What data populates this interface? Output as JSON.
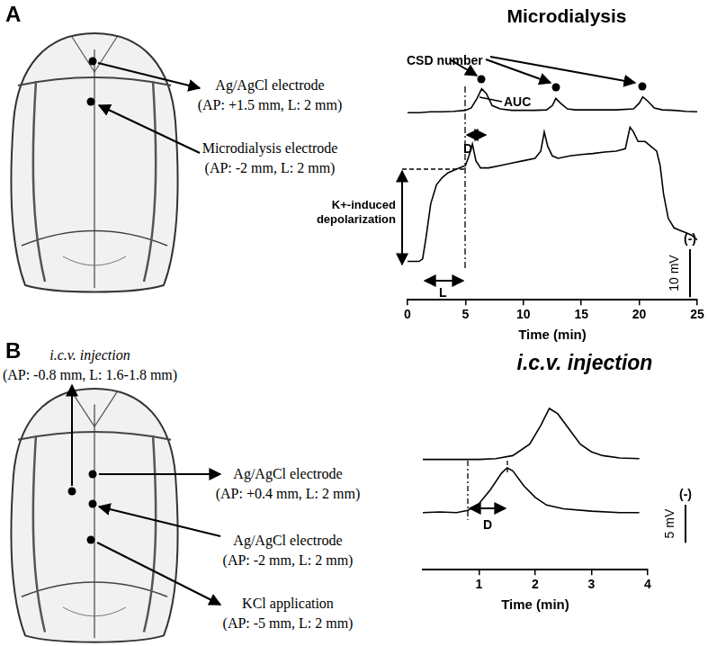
{
  "panels": [
    {
      "label": "A",
      "sites": [
        {
          "name": "Ag/AgCl electrode",
          "coordinates": "(AP: +1.5 mm, L: 2 mm)"
        },
        {
          "name": "Microdialysis electrode",
          "coordinates": "(AP: -2 mm, L: 2 mm)"
        }
      ],
      "annotations": {
        "csd": "CSD number",
        "auc": "AUC",
        "delay": "D",
        "depolarization": [
          "K+-induced",
          "depolarization"
        ],
        "latency": "L"
      }
    },
    {
      "label": "B",
      "sites": [
        {
          "name": "i.c.v. injection",
          "coordinates": "(AP: -0.8 mm, L: 1.6-1.8 mm)"
        },
        {
          "name": "Ag/AgCl electrode",
          "coordinates": "(AP: +0.4 mm, L: 2 mm)"
        },
        {
          "name": "Ag/AgCl electrode",
          "coordinates": "(AP: -2 mm, L: 2 mm)"
        },
        {
          "name": "KCl application",
          "coordinates": "(AP: -5 mm, L: 2 mm)"
        }
      ],
      "annotations": {
        "delay": "D"
      }
    }
  ],
  "chart_data": [
    {
      "type": "line",
      "title": "Microdialysis",
      "x_label": "Time (min)",
      "xlim": [
        0,
        25
      ],
      "xticks": [
        0,
        5,
        10,
        15,
        20,
        25
      ],
      "ylim": [
        -8,
        38
      ],
      "tick_labels": "x",
      "grid": false,
      "scale_bar": {
        "value": 10,
        "label": "10 mV",
        "sign": "(-)"
      },
      "series": [
        {
          "color": "#000000",
          "x": [
            0,
            1,
            2,
            3,
            4,
            5,
            5.5,
            6,
            6.4,
            6.8,
            7.3,
            8,
            9,
            10,
            11,
            12,
            12.5,
            12.8,
            13.2,
            13.8,
            14.5,
            16,
            18,
            19.5,
            20,
            20.3,
            20.7,
            21.3,
            22,
            23,
            24,
            25
          ],
          "values": [
            31,
            31,
            31.2,
            31.2,
            31.3,
            31.5,
            32,
            34,
            36,
            35,
            32.5,
            31.8,
            31.5,
            31.5,
            31.5,
            31.6,
            32.5,
            34,
            33,
            31.8,
            31.6,
            31.6,
            31.6,
            31.8,
            33,
            34.3,
            33.5,
            32,
            31.6,
            31.5,
            31.3,
            31.2
          ]
        },
        {
          "color": "#000000",
          "x": [
            0,
            0.5,
            1,
            1.3,
            1.6,
            2,
            2.5,
            3,
            3.5,
            4,
            4.5,
            5,
            5.3,
            5.6,
            5.9,
            6.3,
            7,
            8,
            9,
            10,
            11,
            11.5,
            11.8,
            12.1,
            12.5,
            13,
            14,
            15,
            16,
            17,
            18,
            18.8,
            19.2,
            19.5,
            19.9,
            20.5,
            21,
            21.5,
            21.8,
            22.1,
            22.5,
            23,
            23.5,
            24,
            24.5,
            25
          ],
          "values": [
            0,
            0,
            0,
            0.5,
            5,
            12,
            16,
            17.5,
            18.5,
            19,
            19.5,
            20,
            22,
            24.5,
            21,
            19.5,
            19.5,
            20,
            20.5,
            21,
            21.5,
            23,
            27,
            24,
            22,
            21.5,
            22,
            22.3,
            22.5,
            22.8,
            23,
            23.5,
            28,
            27,
            25,
            25,
            24,
            23,
            20,
            14,
            9,
            7,
            6.5,
            6,
            5.5,
            4.5
          ]
        }
      ]
    },
    {
      "type": "line",
      "title": "i.c.v. injection",
      "x_label": "Time (min)",
      "xlim": [
        0,
        4
      ],
      "xticks": [
        1,
        2,
        3,
        4
      ],
      "ylim": [
        -7.5,
        15
      ],
      "tick_labels": "x",
      "grid": false,
      "scale_bar": {
        "value": 5,
        "label": "5 mV",
        "sign": "(-)"
      },
      "series": [
        {
          "color": "#000000",
          "x": [
            0,
            0.5,
            1,
            1.3,
            1.6,
            1.9,
            2.1,
            2.25,
            2.4,
            2.6,
            2.8,
            3,
            3.2,
            3.5,
            3.85
          ],
          "values": [
            7,
            7,
            7,
            7.1,
            7.5,
            9,
            11.5,
            13.7,
            13,
            11,
            9,
            8,
            7.5,
            7.2,
            7.1
          ]
        },
        {
          "color": "#000000",
          "x": [
            0,
            0.3,
            0.6,
            0.8,
            1,
            1.2,
            1.4,
            1.5,
            1.6,
            1.8,
            2,
            2.2,
            2.5,
            3,
            3.5,
            3.85
          ],
          "values": [
            0,
            0.1,
            0,
            0.3,
            1.2,
            3,
            5.2,
            5.9,
            5.5,
            3.5,
            2,
            1,
            0.5,
            0.2,
            0,
            0
          ]
        }
      ]
    }
  ]
}
